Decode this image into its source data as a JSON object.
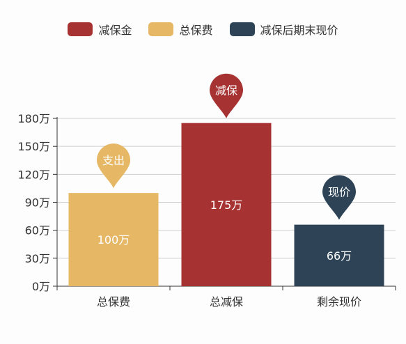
{
  "chart_data": {
    "type": "bar",
    "title": "",
    "xlabel": "",
    "ylabel": "",
    "categories": [
      "总保费",
      "总减保",
      "剩余现价"
    ],
    "values": [
      100,
      175,
      66
    ],
    "value_labels": [
      "100万",
      "175万",
      "66万"
    ],
    "colors": [
      "#E6B865",
      "#A63232",
      "#2E4456"
    ],
    "ylim": [
      0,
      180
    ],
    "yticks": [
      0,
      30,
      60,
      90,
      120,
      150,
      180
    ],
    "ytick_labels": [
      "0万",
      "30万",
      "60万",
      "90万",
      "120万",
      "150万",
      "180万"
    ],
    "grid": true,
    "legend": {
      "position": "top",
      "items": [
        {
          "label": "减保金",
          "color": "#A63232"
        },
        {
          "label": "总保费",
          "color": "#E6B865"
        },
        {
          "label": "减保后期末现价",
          "color": "#2E4456"
        }
      ]
    },
    "markers": [
      "支出",
      "减保",
      "现价"
    ]
  }
}
